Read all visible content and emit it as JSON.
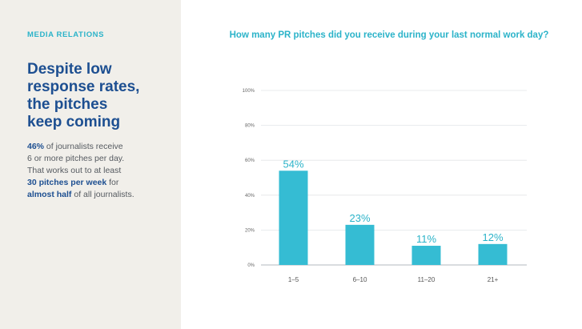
{
  "sidebar": {
    "section_label": "MEDIA RELATIONS",
    "headline": [
      "Despite low",
      "response rates,",
      "the pitches",
      "keep coming"
    ],
    "body": {
      "stat1": "46%",
      "text1": " of journalists receive",
      "text2": "6 or more pitches per day.",
      "text3": "That works out to at least",
      "stat2": "30 pitches per week",
      "text4": " for",
      "stat3": "almost half",
      "text5": " of all journalists."
    }
  },
  "colors": {
    "accent": "#2bb3c9",
    "navy": "#1d4f91",
    "sidebar_bg": "#f1efea",
    "bar": "#35bcd3"
  },
  "chart_data": {
    "type": "bar",
    "title": "How many PR pitches did you receive during your last normal work day?",
    "categories": [
      "1–5",
      "6–10",
      "11–20",
      "21+"
    ],
    "values": [
      54,
      23,
      11,
      12
    ],
    "data_labels": [
      "54%",
      "23%",
      "11%",
      "12%"
    ],
    "yticks": [
      "0%",
      "20%",
      "40%",
      "60%",
      "80%",
      "100%"
    ],
    "ylim": [
      0,
      100
    ],
    "xlabel": "",
    "ylabel": "",
    "grid": true
  }
}
